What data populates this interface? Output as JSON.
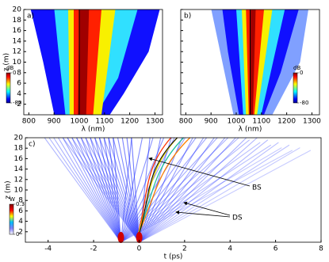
{
  "chart_data": [
    {
      "type": "heatmap",
      "panel_label": "a)",
      "xlabel": "λ (nm)",
      "ylabel": "z (m)",
      "xlim": [
        780,
        1330
      ],
      "ylim": [
        0,
        20
      ],
      "xticks": [
        800,
        900,
        1000,
        1100,
        1200,
        1300
      ],
      "yticks": [
        2,
        4,
        6,
        8,
        10,
        12,
        14,
        16,
        18,
        20
      ],
      "colorbar": {
        "label": "dB",
        "lim": [
          -80,
          0
        ],
        "ticks": [
          0,
          -80
        ]
      }
    },
    {
      "type": "heatmap",
      "panel_label": "b)",
      "xlabel": "λ (nm)",
      "xlim": [
        780,
        1330
      ],
      "ylim": [
        0,
        20
      ],
      "xticks": [
        800,
        900,
        1000,
        1100,
        1200,
        1300
      ],
      "yticks": [
        2,
        4,
        6,
        8,
        10,
        12,
        14,
        16,
        18,
        20
      ],
      "colorbar": {
        "label": "dB",
        "lim": [
          -80,
          0
        ],
        "ticks": [
          0,
          -80
        ]
      }
    },
    {
      "type": "heatmap",
      "panel_label": "c)",
      "xlabel": "t (ps)",
      "ylabel": "z (m)",
      "xlim": [
        -5,
        8
      ],
      "ylim": [
        0,
        20
      ],
      "xticks": [
        -4,
        -2,
        0,
        2,
        4,
        6,
        8
      ],
      "yticks": [
        2,
        4,
        6,
        8,
        10,
        12,
        14,
        16,
        18,
        20
      ],
      "colorbar": {
        "label": "W",
        "lim": [
          0,
          0.3
        ],
        "ticks": [
          0.3,
          0
        ]
      },
      "annotations": [
        "BS",
        "DS"
      ]
    }
  ]
}
